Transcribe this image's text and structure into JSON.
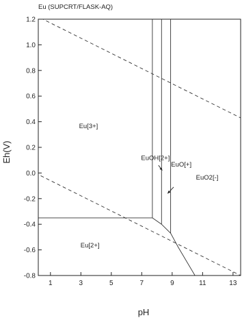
{
  "chart_data": {
    "type": "line",
    "title": "Eu (SUPCRT/FLASK-AQ)",
    "xlabel": "pH",
    "ylabel": "Eh(V)",
    "xlim": [
      0,
      13.5
    ],
    "ylim": [
      -0.8,
      1.2
    ],
    "xticks": [
      1,
      3,
      5,
      7,
      9,
      11,
      13
    ],
    "yticks": [
      -0.8,
      -0.6,
      -0.4,
      -0.2,
      0.0,
      0.2,
      0.4,
      0.6,
      0.8,
      1.0,
      1.2
    ],
    "ytick_labels": [
      "-0.8",
      "-0.6",
      "-0.4",
      "-0.2",
      "0.0",
      "0.2",
      "0.4",
      "0.6",
      "0.8",
      "1.0",
      "1.2"
    ],
    "grid": false,
    "water_stability_lines": [
      {
        "style": "dashed",
        "points": [
          [
            0,
            1.23
          ],
          [
            13.5,
            0.43
          ]
        ]
      },
      {
        "style": "dashed",
        "points": [
          [
            0,
            0.0
          ],
          [
            13.5,
            -0.8
          ]
        ]
      }
    ],
    "boundaries": [
      {
        "points": [
          [
            0,
            1.2
          ],
          [
            13.5,
            1.2
          ]
        ]
      },
      {
        "points": [
          [
            0,
            -0.35
          ],
          [
            7.7,
            -0.35
          ]
        ]
      },
      {
        "points": [
          [
            7.7,
            -0.35
          ],
          [
            7.7,
            1.2
          ]
        ]
      },
      {
        "points": [
          [
            8.3,
            -0.4
          ],
          [
            8.3,
            1.2
          ]
        ]
      },
      {
        "points": [
          [
            8.9,
            -0.47
          ],
          [
            8.9,
            1.2
          ]
        ]
      },
      {
        "points": [
          [
            7.7,
            -0.35
          ],
          [
            8.3,
            -0.4
          ],
          [
            8.9,
            -0.47
          ],
          [
            9.4,
            -0.58
          ],
          [
            10.5,
            -0.8
          ]
        ]
      }
    ],
    "regions": [
      {
        "label": "Eu[3+]",
        "x": 3.5,
        "y": 0.35
      },
      {
        "label": "EuOH[2+]",
        "x": 7.9,
        "y": 0.1
      },
      {
        "label": "EuO[+]",
        "x": 9.6,
        "y": 0.05
      },
      {
        "label": "EuO2[-]",
        "x": 11.3,
        "y": -0.05
      },
      {
        "label": "Eu[2+]",
        "x": 3.6,
        "y": -0.58
      }
    ],
    "annotation_arrows": [
      {
        "from": [
          8.1,
          0.06
        ],
        "to": [
          8.35,
          0.02
        ]
      },
      {
        "from": [
          9.1,
          -0.11
        ],
        "to": [
          8.7,
          -0.16
        ]
      }
    ]
  }
}
